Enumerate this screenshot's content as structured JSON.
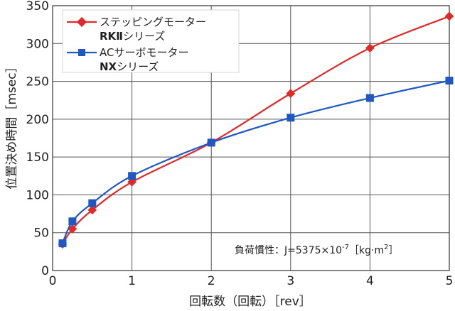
{
  "chart_data": {
    "type": "line",
    "xlabel": "回転数（回転）［rev］",
    "ylabel": "位置決め時間［msec］",
    "xlim": [
      0,
      5
    ],
    "ylim": [
      0,
      350
    ],
    "x_ticks": [
      "0",
      "1",
      "2",
      "3",
      "4",
      "5"
    ],
    "y_ticks": [
      "0",
      "50",
      "100",
      "150",
      "200",
      "250",
      "300",
      "350"
    ],
    "grid": true,
    "legend_position": "top-left",
    "series": [
      {
        "name_line1": "ステッピングモーター",
        "name_line2_bold": "RKⅡ",
        "name_line2_rest": "シリーズ",
        "color": "#e02a2a",
        "marker": "diamond",
        "x": [
          0.125,
          0.25,
          0.5,
          1,
          2,
          3,
          4,
          5
        ],
        "y": [
          35,
          55,
          80,
          117,
          169,
          234,
          294,
          336
        ]
      },
      {
        "name_line1": "ACサーボモーター",
        "name_line2_bold": "NX",
        "name_line2_rest": "シリーズ",
        "color": "#1f57c3",
        "marker": "square",
        "x": [
          0.125,
          0.25,
          0.5,
          1,
          2,
          3,
          4,
          5
        ],
        "y": [
          36,
          65,
          89,
          125,
          169,
          202,
          228,
          251
        ]
      }
    ],
    "annotation": {
      "prefix": "負荷慣性：J=5375×10",
      "exponent": "-7",
      "suffix": "［kg·m",
      "sup": "2",
      "close": "］"
    }
  }
}
